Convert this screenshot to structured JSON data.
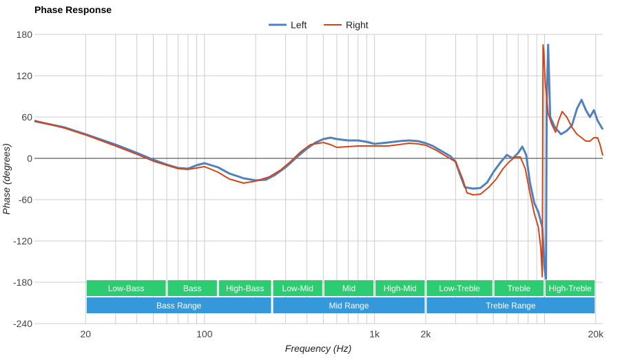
{
  "chart_data": {
    "type": "line",
    "title": "Phase Response",
    "xlabel": "Frequency (Hz)",
    "ylabel": "Phase (degrees)",
    "x_scale": "log",
    "xlim": [
      10,
      22000
    ],
    "ylim": [
      -240,
      180
    ],
    "y_ticks": [
      180,
      120,
      60,
      0,
      -60,
      -120,
      -180,
      -240
    ],
    "x_ticks": [
      {
        "value": 20,
        "label": "20"
      },
      {
        "value": 100,
        "label": "100"
      },
      {
        "value": 1000,
        "label": "1k"
      },
      {
        "value": 2000,
        "label": "2k"
      },
      {
        "value": 20000,
        "label": "20k"
      }
    ],
    "x_minor_grid": [
      20,
      30,
      40,
      50,
      60,
      70,
      80,
      90,
      100,
      200,
      300,
      400,
      500,
      600,
      700,
      800,
      900,
      1000,
      2000,
      3000,
      4000,
      5000,
      6000,
      7000,
      8000,
      9000,
      10000,
      20000
    ],
    "grid": true,
    "legend_position": "top-center",
    "series": [
      {
        "name": "Left",
        "color": "#4f81bd",
        "points": [
          [
            10,
            54
          ],
          [
            15,
            45
          ],
          [
            20,
            35
          ],
          [
            30,
            20
          ],
          [
            40,
            8
          ],
          [
            50,
            -2
          ],
          [
            60,
            -9
          ],
          [
            70,
            -14
          ],
          [
            80,
            -15
          ],
          [
            90,
            -10
          ],
          [
            100,
            -7
          ],
          [
            120,
            -13
          ],
          [
            140,
            -22
          ],
          [
            170,
            -29
          ],
          [
            200,
            -32
          ],
          [
            230,
            -31
          ],
          [
            260,
            -24
          ],
          [
            300,
            -13
          ],
          [
            350,
            2
          ],
          [
            400,
            14
          ],
          [
            450,
            23
          ],
          [
            500,
            28
          ],
          [
            550,
            30
          ],
          [
            600,
            28
          ],
          [
            700,
            26
          ],
          [
            800,
            26
          ],
          [
            900,
            24
          ],
          [
            1000,
            21
          ],
          [
            1200,
            23
          ],
          [
            1400,
            25
          ],
          [
            1600,
            26
          ],
          [
            1800,
            25
          ],
          [
            2000,
            22
          ],
          [
            2200,
            18
          ],
          [
            2500,
            10
          ],
          [
            2800,
            3
          ],
          [
            3000,
            -5
          ],
          [
            3200,
            -25
          ],
          [
            3400,
            -42
          ],
          [
            3800,
            -44
          ],
          [
            4200,
            -43
          ],
          [
            4600,
            -35
          ],
          [
            5000,
            -20
          ],
          [
            5500,
            -6
          ],
          [
            6000,
            5
          ],
          [
            6500,
            0
          ],
          [
            7000,
            8
          ],
          [
            7400,
            17
          ],
          [
            7800,
            5
          ],
          [
            8200,
            -35
          ],
          [
            8700,
            -65
          ],
          [
            9200,
            -78
          ],
          [
            9700,
            -100
          ],
          [
            10000,
            -160
          ],
          [
            10200,
            -175
          ],
          [
            10300,
            80
          ],
          [
            10500,
            165
          ],
          [
            10800,
            60
          ],
          [
            11500,
            45
          ],
          [
            12500,
            35
          ],
          [
            13500,
            40
          ],
          [
            14500,
            48
          ],
          [
            15500,
            72
          ],
          [
            16500,
            85
          ],
          [
            17500,
            70
          ],
          [
            18500,
            60
          ],
          [
            19500,
            70
          ],
          [
            20500,
            55
          ],
          [
            22000,
            42
          ]
        ]
      },
      {
        "name": "Right",
        "color": "#d84315",
        "points": [
          [
            10,
            55
          ],
          [
            15,
            44
          ],
          [
            20,
            34
          ],
          [
            30,
            18
          ],
          [
            40,
            6
          ],
          [
            50,
            -4
          ],
          [
            60,
            -10
          ],
          [
            70,
            -15
          ],
          [
            80,
            -16
          ],
          [
            90,
            -14
          ],
          [
            100,
            -12
          ],
          [
            120,
            -20
          ],
          [
            140,
            -30
          ],
          [
            170,
            -36
          ],
          [
            200,
            -33
          ],
          [
            240,
            -27
          ],
          [
            280,
            -17
          ],
          [
            320,
            -5
          ],
          [
            370,
            10
          ],
          [
            420,
            20
          ],
          [
            500,
            23
          ],
          [
            550,
            20
          ],
          [
            600,
            16
          ],
          [
            700,
            17
          ],
          [
            800,
            18
          ],
          [
            1000,
            18
          ],
          [
            1200,
            18
          ],
          [
            1400,
            20
          ],
          [
            1600,
            22
          ],
          [
            1800,
            21
          ],
          [
            2000,
            19
          ],
          [
            2300,
            12
          ],
          [
            2600,
            4
          ],
          [
            3000,
            -5
          ],
          [
            3300,
            -30
          ],
          [
            3500,
            -50
          ],
          [
            3800,
            -53
          ],
          [
            4200,
            -52
          ],
          [
            4700,
            -42
          ],
          [
            5200,
            -30
          ],
          [
            5700,
            -15
          ],
          [
            6200,
            -5
          ],
          [
            6700,
            2
          ],
          [
            7200,
            2
          ],
          [
            7700,
            -15
          ],
          [
            8200,
            -50
          ],
          [
            8700,
            -80
          ],
          [
            9200,
            -100
          ],
          [
            9500,
            -130
          ],
          [
            9700,
            -172
          ],
          [
            9800,
            165
          ],
          [
            9900,
            155
          ],
          [
            10100,
            110
          ],
          [
            10500,
            65
          ],
          [
            11000,
            50
          ],
          [
            11600,
            38
          ],
          [
            12100,
            55
          ],
          [
            12700,
            68
          ],
          [
            13500,
            60
          ],
          [
            14500,
            45
          ],
          [
            15500,
            35
          ],
          [
            16500,
            30
          ],
          [
            17500,
            25
          ],
          [
            18500,
            25
          ],
          [
            19500,
            30
          ],
          [
            20500,
            30
          ],
          [
            21200,
            20
          ],
          [
            22000,
            4
          ]
        ]
      }
    ],
    "bands": [
      {
        "label": "Low-Bass",
        "from": 20,
        "to": 60,
        "row": 1,
        "color": "#2ecc71"
      },
      {
        "label": "Bass",
        "from": 60,
        "to": 120,
        "row": 1,
        "color": "#2ecc71"
      },
      {
        "label": "High-Bass",
        "from": 120,
        "to": 250,
        "row": 1,
        "color": "#2ecc71"
      },
      {
        "label": "Low-Mid",
        "from": 250,
        "to": 500,
        "row": 1,
        "color": "#2ecc71"
      },
      {
        "label": "Mid",
        "from": 500,
        "to": 1000,
        "row": 1,
        "color": "#2ecc71"
      },
      {
        "label": "High-Mid",
        "from": 1000,
        "to": 2000,
        "row": 1,
        "color": "#2ecc71"
      },
      {
        "label": "Low-Treble",
        "from": 2000,
        "to": 5000,
        "row": 1,
        "color": "#2ecc71"
      },
      {
        "label": "Treble",
        "from": 5000,
        "to": 10000,
        "row": 1,
        "color": "#2ecc71"
      },
      {
        "label": "High-Treble",
        "from": 10000,
        "to": 20000,
        "row": 1,
        "color": "#2ecc71"
      },
      {
        "label": "Bass Range",
        "from": 20,
        "to": 250,
        "row": 2,
        "color": "#3498db"
      },
      {
        "label": "Mid Range",
        "from": 250,
        "to": 2000,
        "row": 2,
        "color": "#3498db"
      },
      {
        "label": "Treble Range",
        "from": 2000,
        "to": 20000,
        "row": 2,
        "color": "#3498db"
      }
    ]
  }
}
